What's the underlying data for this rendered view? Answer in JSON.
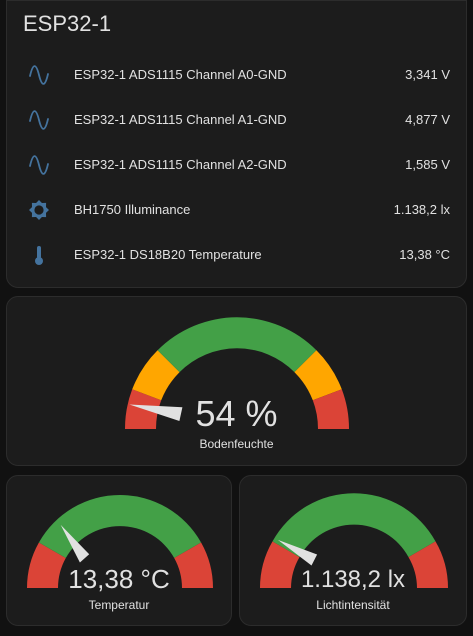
{
  "entities_card": {
    "title": "ESP32-1",
    "rows": [
      {
        "icon": "sine-wave-icon",
        "name": "ESP32-1 ADS1115 Channel A0-GND",
        "state": "3,341 V"
      },
      {
        "icon": "sine-wave-icon",
        "name": "ESP32-1 ADS1115 Channel A1-GND",
        "state": "4,877 V"
      },
      {
        "icon": "sine-wave-icon",
        "name": "ESP32-1 ADS1115 Channel A2-GND",
        "state": "1,585 V"
      },
      {
        "icon": "brightness-icon",
        "name": "BH1750 Illuminance",
        "state": "1.138,2 lx"
      },
      {
        "icon": "thermometer-icon",
        "name": "ESP32-1 DS18B20 Temperature",
        "state": "13,38 °C"
      }
    ]
  },
  "gauges": {
    "moisture": {
      "value_text": "54 %",
      "label": "Bodenfeuchte",
      "fraction": 0.05
    },
    "temperature": {
      "value_text": "13,38 °C",
      "label": "Temperatur",
      "fraction": 0.22
    },
    "illuminance": {
      "value_text": "1.138,2 lx",
      "label": "Lichtintensität",
      "fraction": 0.12
    }
  },
  "colors": {
    "icon": "#44739e",
    "severity_green": "#43a047",
    "severity_yellow": "#ffa600",
    "severity_red": "#db4437",
    "needle": "#e1e1e1",
    "card_background": "#1c1c1c"
  }
}
